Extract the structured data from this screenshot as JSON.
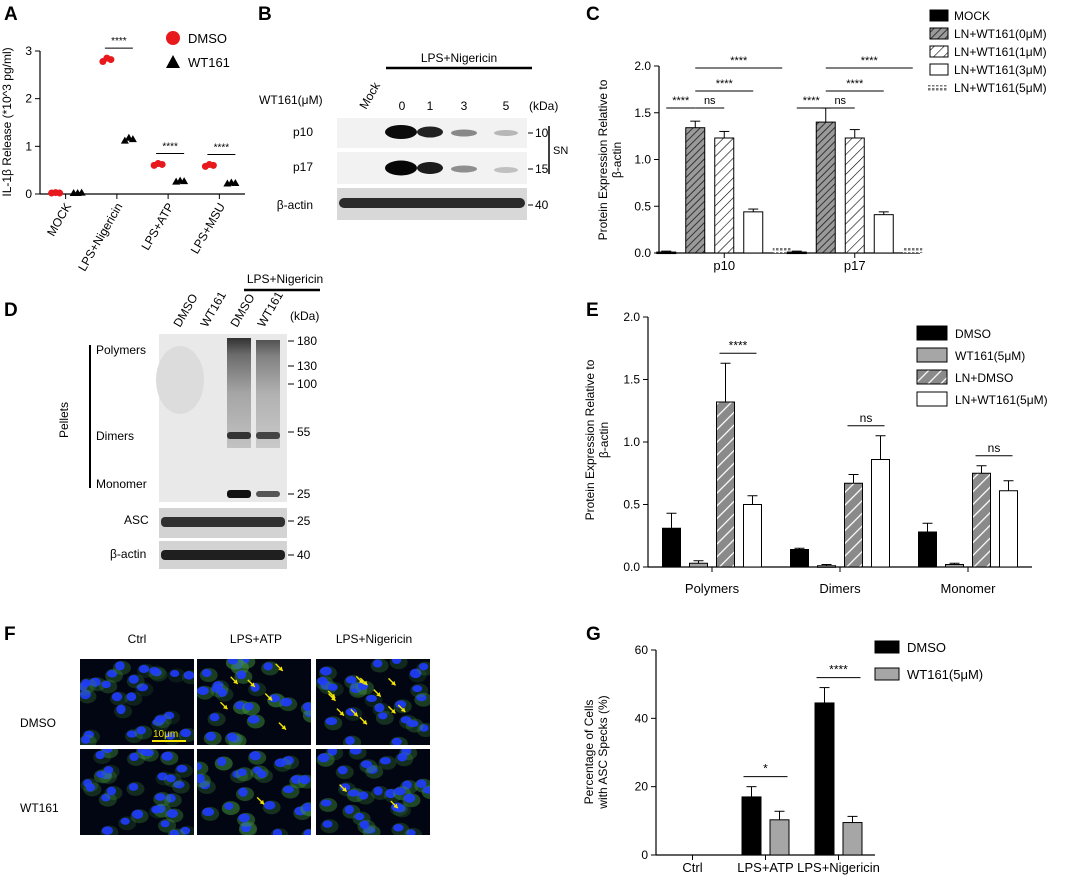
{
  "panels": {
    "A": {
      "letter": "A"
    },
    "B": {
      "letter": "B"
    },
    "C": {
      "letter": "C"
    },
    "D": {
      "letter": "D"
    },
    "E": {
      "letter": "E"
    },
    "F": {
      "letter": "F"
    },
    "G": {
      "letter": "G"
    }
  },
  "colors": {
    "dmso_red": "#e8191c",
    "black": "#000000",
    "gray": "#a6a6a6",
    "nucleus_blue": "#1f3cff",
    "asc_green": "#3f8f3a",
    "arrow_yellow": "#f4e400"
  },
  "blotB": {
    "treatment": "LPS+Nigericin",
    "mock_label": "Mock",
    "dose_label": "WT161(μM)",
    "doses": [
      "0",
      "1",
      "3",
      "5"
    ],
    "kda_label": "(kDa)",
    "rows": [
      "p10",
      "p17",
      "β-actin"
    ],
    "markers": [
      "10",
      "15",
      "40"
    ],
    "sn_label": "SN"
  },
  "blotD": {
    "lanes": [
      "DMSO",
      "WT161",
      "DMSO",
      "WT161"
    ],
    "treatment": "LPS+Nigericin",
    "kda_label": "(kDa)",
    "pellets_label": "Pellets",
    "band_labels": [
      "Polymers",
      "Dimers",
      "Monomer"
    ],
    "markers": [
      "180",
      "130",
      "100",
      "55",
      "25"
    ],
    "asc_label": "ASC",
    "asc_marker": "25",
    "actin_label": "β-actin",
    "actin_marker": "40"
  },
  "microscopy": {
    "columns": [
      "Ctrl",
      "LPS+ATP",
      "LPS+Nigericin"
    ],
    "rows": [
      "DMSO",
      "WT161"
    ],
    "scale_bar": "10μm"
  },
  "chart_data": [
    {
      "panel": "A",
      "type": "scatter",
      "ylabel": "IL-1β Release (*10^3 pg/ml)",
      "ylim": [
        0,
        3
      ],
      "yticks": [
        "0",
        "1",
        "2",
        "3"
      ],
      "categories": [
        "MOCK",
        "LPS+Nigericin",
        "LPS+ATP",
        "LPS+MSU"
      ],
      "series": [
        {
          "name": "DMSO",
          "marker": "circle",
          "color": "#e8191c",
          "values": [
            [
              0.02,
              0.03,
              0.02
            ],
            [
              2.78,
              2.85,
              2.82
            ],
            [
              0.6,
              0.64,
              0.62
            ],
            [
              0.58,
              0.62,
              0.6
            ]
          ]
        },
        {
          "name": "WT161",
          "marker": "triangle",
          "color": "#000000",
          "values": [
            [
              0.02,
              0.02,
              0.03
            ],
            [
              1.12,
              1.18,
              1.15
            ],
            [
              0.26,
              0.28,
              0.27
            ],
            [
              0.22,
              0.24,
              0.23
            ]
          ]
        }
      ],
      "significance": [
        {
          "category": 1,
          "label": "****"
        },
        {
          "category": 2,
          "label": "****"
        },
        {
          "category": 3,
          "label": "****"
        }
      ],
      "legend_position": "top-right"
    },
    {
      "panel": "C",
      "type": "bar",
      "ylabel": "Protein Expression Relative to β-actin",
      "ylim": [
        0,
        2.0
      ],
      "yticks": [
        "0.0",
        "0.5",
        "1.0",
        "1.5",
        "2.0"
      ],
      "categories": [
        "p10",
        "p17"
      ],
      "series": [
        {
          "name": "MOCK",
          "values": [
            0.01,
            0.01
          ],
          "errors": [
            0.01,
            0.01
          ]
        },
        {
          "name": "LN+WT161(0μM)",
          "values": [
            1.34,
            1.4
          ],
          "errors": [
            0.07,
            0.15
          ]
        },
        {
          "name": "LN+WT161(1μM)",
          "values": [
            1.23,
            1.23
          ],
          "errors": [
            0.07,
            0.09
          ]
        },
        {
          "name": "LN+WT161(3μM)",
          "values": [
            0.44,
            0.41
          ],
          "errors": [
            0.03,
            0.03
          ]
        },
        {
          "name": "LN+WT161(5μM)",
          "values": [
            0.1,
            0.1
          ],
          "errors": [
            0,
            0
          ]
        }
      ],
      "significance": [
        {
          "category": 0,
          "from": 0,
          "to": 1,
          "label": "****",
          "level": 0
        },
        {
          "category": 0,
          "from": 1,
          "to": 2,
          "label": "ns",
          "level": 0
        },
        {
          "category": 0,
          "from": 1,
          "to": 3,
          "label": "****",
          "level": 1
        },
        {
          "category": 0,
          "from": 1,
          "to": 4,
          "label": "****",
          "level": 2
        },
        {
          "category": 1,
          "from": 0,
          "to": 1,
          "label": "****",
          "level": 0
        },
        {
          "category": 1,
          "from": 1,
          "to": 2,
          "label": "ns",
          "level": 0
        },
        {
          "category": 1,
          "from": 1,
          "to": 3,
          "label": "****",
          "level": 1
        },
        {
          "category": 1,
          "from": 1,
          "to": 4,
          "label": "****",
          "level": 2
        }
      ],
      "legend_position": "top-right"
    },
    {
      "panel": "E",
      "type": "bar",
      "ylabel": "Protein Expression Relative to β-actin",
      "ylim": [
        0,
        2.0
      ],
      "yticks": [
        "0.0",
        "0.5",
        "1.0",
        "1.5",
        "2.0"
      ],
      "categories": [
        "Polymers",
        "Dimers",
        "Monomer"
      ],
      "series": [
        {
          "name": "DMSO",
          "values": [
            0.31,
            0.14,
            0.28
          ],
          "errors": [
            0.12,
            0.01,
            0.07
          ]
        },
        {
          "name": "WT161(5μM)",
          "values": [
            0.03,
            0.01,
            0.02
          ],
          "errors": [
            0.02,
            0.01,
            0.01
          ]
        },
        {
          "name": "LN+DMSO",
          "values": [
            1.32,
            0.67,
            0.75
          ],
          "errors": [
            0.31,
            0.07,
            0.06
          ]
        },
        {
          "name": "LN+WT161(5μM)",
          "values": [
            0.5,
            0.86,
            0.61
          ],
          "errors": [
            0.07,
            0.19,
            0.08
          ]
        }
      ],
      "significance": [
        {
          "category": 0,
          "from": 2,
          "to": 3,
          "label": "****"
        },
        {
          "category": 1,
          "from": 2,
          "to": 3,
          "label": "ns"
        },
        {
          "category": 2,
          "from": 2,
          "to": 3,
          "label": "ns"
        }
      ],
      "legend_position": "top-right"
    },
    {
      "panel": "G",
      "type": "bar",
      "ylabel": "Percentage of Cells with ASC Specks (%)",
      "ylim": [
        0,
        60
      ],
      "yticks": [
        "0",
        "20",
        "40",
        "60"
      ],
      "categories": [
        "Ctrl",
        "LPS+ATP",
        "LPS+Nigericin"
      ],
      "series": [
        {
          "name": "DMSO",
          "values": [
            0,
            17,
            44.5
          ],
          "errors": [
            0,
            3,
            4.5
          ]
        },
        {
          "name": "WT161(5μM)",
          "values": [
            0,
            10.3,
            9.5
          ],
          "errors": [
            0,
            2.5,
            1.8
          ]
        }
      ],
      "significance": [
        {
          "category": 1,
          "from": 0,
          "to": 1,
          "label": "*"
        },
        {
          "category": 2,
          "from": 0,
          "to": 1,
          "label": "****"
        }
      ],
      "legend_position": "top-right"
    }
  ]
}
